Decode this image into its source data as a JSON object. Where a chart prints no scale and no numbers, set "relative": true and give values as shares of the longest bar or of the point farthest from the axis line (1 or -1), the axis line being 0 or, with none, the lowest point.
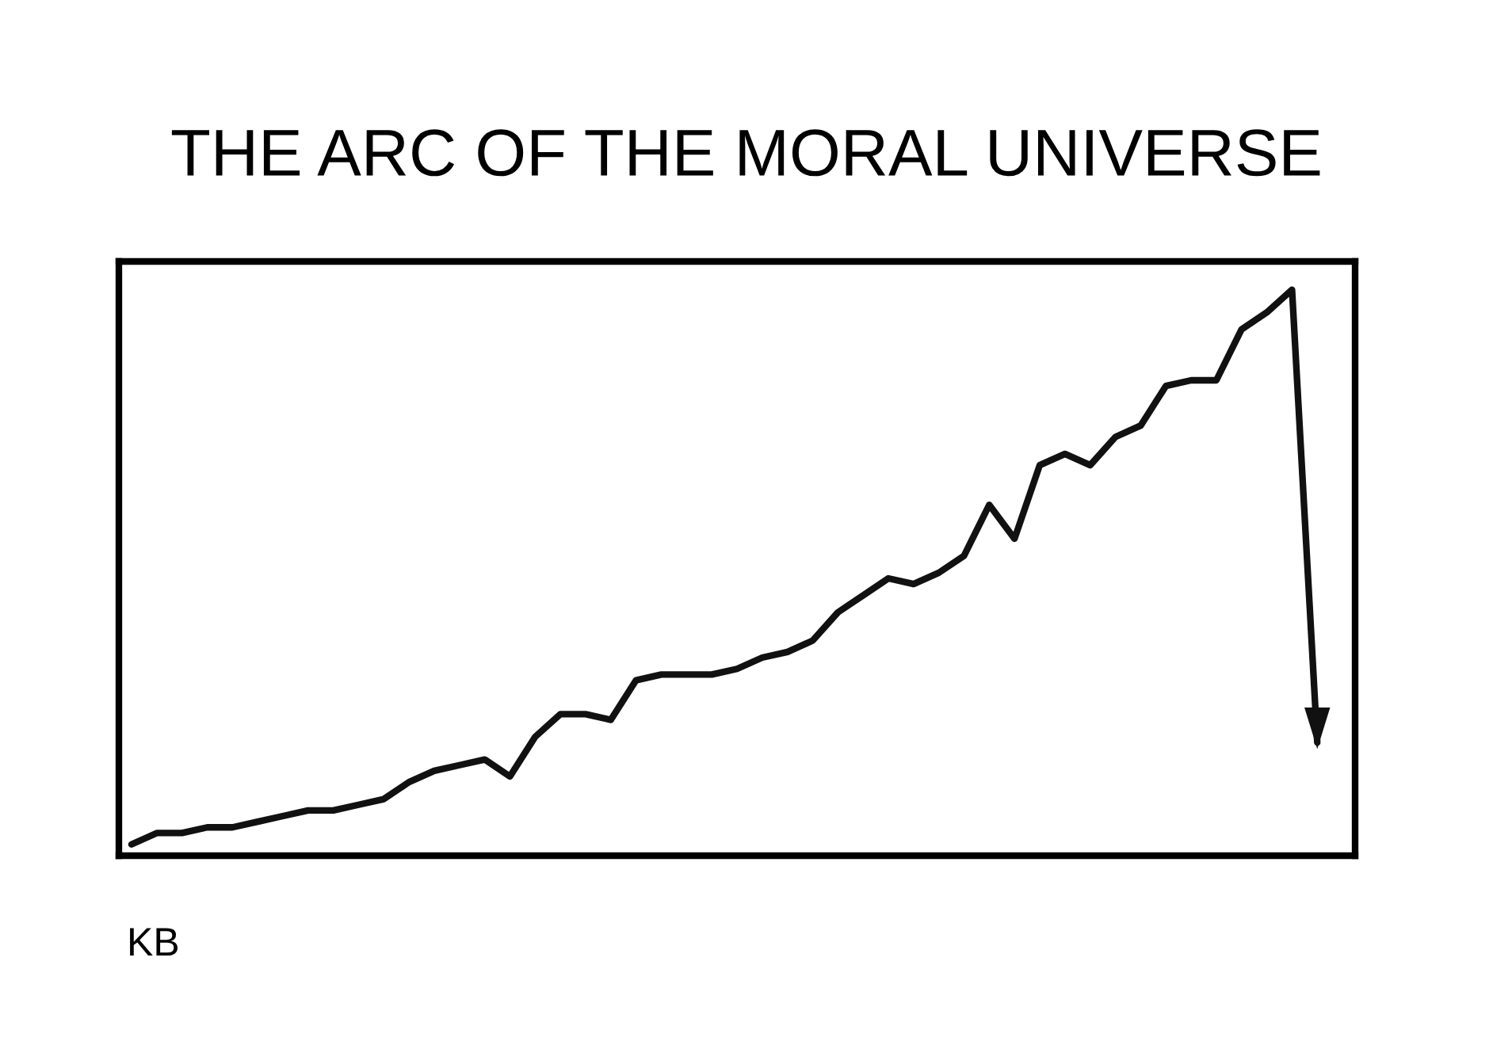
{
  "chart_data": {
    "type": "line",
    "title": "THE ARC OF THE MORAL UNIVERSE",
    "relative": true,
    "grid": false,
    "marker": "none",
    "line_style": "solid",
    "categories": [
      null,
      null,
      null,
      null,
      null,
      null,
      null,
      null,
      null,
      null,
      null,
      null,
      null,
      null,
      null,
      null,
      null,
      null,
      null,
      null,
      null,
      null,
      null,
      null,
      null,
      null,
      null,
      null,
      null,
      null,
      null,
      null,
      null,
      null,
      null,
      null,
      null,
      null,
      null,
      null,
      null,
      null,
      null,
      null,
      null,
      null,
      null,
      null
    ],
    "series": [
      {
        "color": "#111111",
        "values": [
          0.02,
          0.04,
          0.04,
          0.05,
          0.05,
          0.06,
          0.07,
          0.08,
          0.08,
          0.09,
          0.1,
          0.13,
          0.15,
          0.16,
          0.17,
          0.14,
          0.21,
          0.25,
          0.25,
          0.24,
          0.31,
          0.32,
          0.32,
          0.32,
          0.33,
          0.35,
          0.36,
          0.38,
          0.43,
          0.46,
          0.49,
          0.48,
          0.5,
          0.53,
          0.62,
          0.56,
          0.69,
          0.71,
          0.69,
          0.74,
          0.76,
          0.83,
          0.84,
          0.84,
          0.93,
          0.96,
          1.0,
          0.2
        ]
      }
    ],
    "annotations": [
      "KB"
    ]
  }
}
